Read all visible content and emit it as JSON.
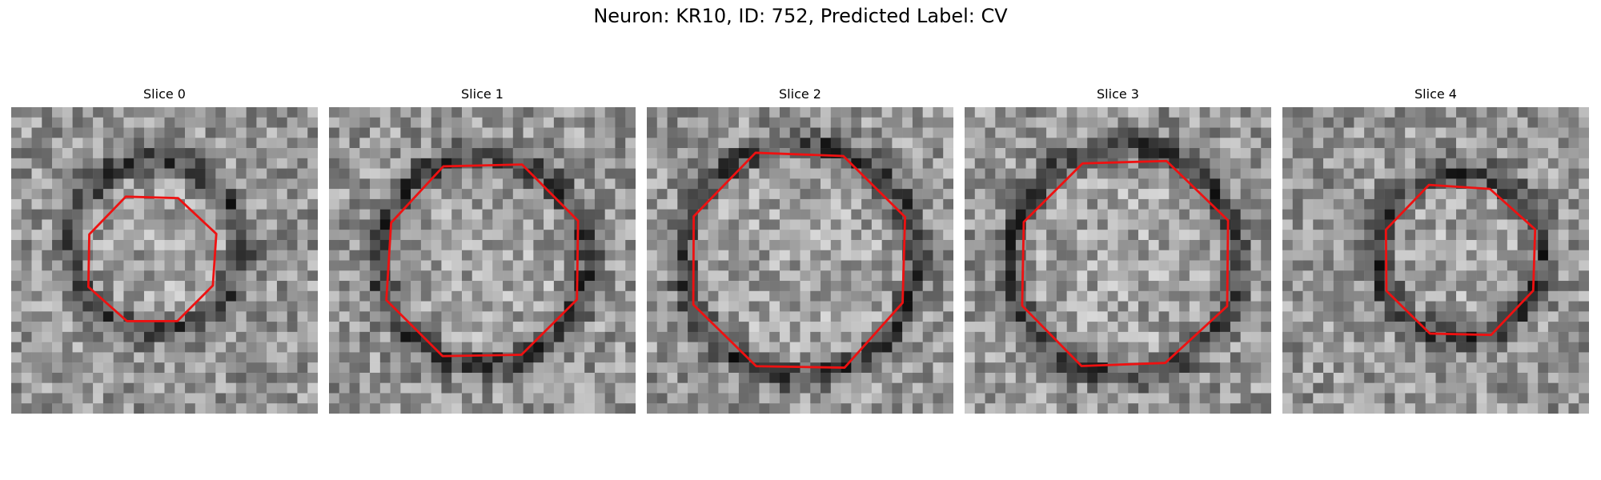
{
  "title": "Neuron: KR10, ID: 752, Predicted Label: CV",
  "panels": [
    {
      "label": "Slice 0",
      "contour_radius": 0.22,
      "contour_center": [
        0.46,
        0.5
      ],
      "ring_radius": 0.28,
      "ring_center": [
        0.47,
        0.45
      ],
      "seed": 11
    },
    {
      "label": "Slice 1",
      "contour_radius": 0.33,
      "contour_center": [
        0.5,
        0.5
      ],
      "ring_radius": 0.34,
      "ring_center": [
        0.5,
        0.5
      ],
      "seed": 23
    },
    {
      "label": "Slice 2",
      "contour_radius": 0.37,
      "contour_center": [
        0.5,
        0.5
      ],
      "ring_radius": 0.38,
      "ring_center": [
        0.5,
        0.5
      ],
      "seed": 37
    },
    {
      "label": "Slice 3",
      "contour_radius": 0.36,
      "contour_center": [
        0.52,
        0.51
      ],
      "ring_radius": 0.37,
      "ring_center": [
        0.52,
        0.5
      ],
      "seed": 41
    },
    {
      "label": "Slice 4",
      "contour_radius": 0.26,
      "contour_center": [
        0.58,
        0.5
      ],
      "ring_radius": 0.27,
      "ring_center": [
        0.58,
        0.48
      ],
      "seed": 53
    }
  ],
  "colors": {
    "contour": "#ee1111"
  }
}
